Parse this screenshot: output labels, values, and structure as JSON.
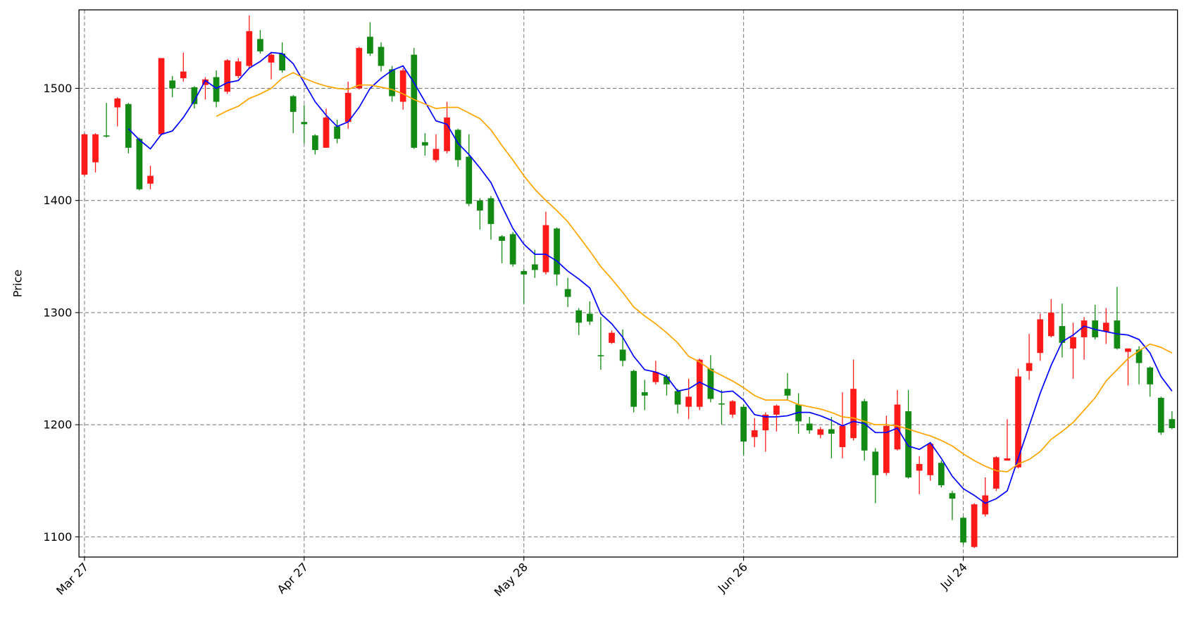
{
  "chart_data": {
    "type": "candlestick",
    "y_label": "Price",
    "up_color": "#ff1a1a",
    "down_color": "#138a13",
    "grid": true,
    "xlim": [
      -0.5,
      99.5
    ],
    "ylim": [
      1082,
      1570
    ],
    "yticks": [
      1100,
      1200,
      1300,
      1400,
      1500
    ],
    "xticks": [
      {
        "value": 0,
        "label": "Mar 27"
      },
      {
        "value": 20,
        "label": "Apr 27"
      },
      {
        "value": 40,
        "label": "May 28"
      },
      {
        "value": 60,
        "label": "Jun 26"
      },
      {
        "value": 80,
        "label": "Jul 24"
      }
    ],
    "open": [
      1423,
      1434,
      1458,
      1483,
      1486,
      1455,
      1415,
      1459,
      1507,
      1509,
      1501,
      1503,
      1510,
      1497,
      1511,
      1520,
      1544,
      1523,
      1531,
      1493,
      1470,
      1458,
      1447,
      1466,
      1470,
      1500,
      1546,
      1537,
      1517,
      1488,
      1530,
      1452,
      1436,
      1444,
      1463,
      1439,
      1400,
      1402,
      1368,
      1370,
      1337,
      1343,
      1336,
      1375,
      1321,
      1302,
      1299,
      1262,
      1273,
      1267,
      1248,
      1229,
      1238,
      1243,
      1230,
      1216,
      1216,
      1250,
      1219,
      1209,
      1216,
      1189,
      1195,
      1209,
      1232,
      1218,
      1201,
      1191,
      1196,
      1180,
      1188,
      1221,
      1176,
      1157,
      1178,
      1212,
      1159,
      1155,
      1166,
      1139,
      1117,
      1091,
      1120,
      1143,
      1168,
      1162,
      1248,
      1264,
      1279,
      1288,
      1268,
      1278,
      1293,
      1283,
      1293,
      1265,
      1267,
      1251,
      1224,
      1205
    ],
    "high": [
      1460,
      1460,
      1487,
      1492,
      1487,
      1456,
      1431,
      1527,
      1511,
      1532,
      1502,
      1510,
      1516,
      1526,
      1527,
      1565,
      1552,
      1532,
      1541,
      1494,
      1485,
      1459,
      1482,
      1472,
      1506,
      1537,
      1559,
      1541,
      1520,
      1518,
      1536,
      1460,
      1459,
      1488,
      1464,
      1459,
      1402,
      1404,
      1369,
      1372,
      1339,
      1356,
      1390,
      1376,
      1331,
      1304,
      1310,
      1296,
      1284,
      1285,
      1249,
      1240,
      1257,
      1245,
      1232,
      1241,
      1259,
      1262,
      1231,
      1222,
      1218,
      1206,
      1211,
      1218,
      1246,
      1228,
      1207,
      1198,
      1207,
      1229,
      1258,
      1223,
      1179,
      1208,
      1231,
      1231,
      1172,
      1184,
      1168,
      1141,
      1118,
      1130,
      1153,
      1172,
      1205,
      1250,
      1281,
      1299,
      1312,
      1308,
      1291,
      1296,
      1307,
      1304,
      1323,
      1268,
      1270,
      1252,
      1225,
      1212
    ],
    "low": [
      1422,
      1425,
      1456,
      1466,
      1442,
      1409,
      1410,
      1458,
      1492,
      1506,
      1482,
      1490,
      1483,
      1495,
      1509,
      1518,
      1531,
      1508,
      1514,
      1460,
      1451,
      1441,
      1447,
      1451,
      1464,
      1499,
      1529,
      1515,
      1488,
      1481,
      1446,
      1440,
      1434,
      1442,
      1430,
      1395,
      1374,
      1365,
      1344,
      1341,
      1308,
      1331,
      1334,
      1324,
      1305,
      1280,
      1289,
      1249,
      1272,
      1252,
      1211,
      1213,
      1236,
      1226,
      1210,
      1205,
      1213,
      1220,
      1200,
      1206,
      1173,
      1180,
      1176,
      1194,
      1222,
      1192,
      1192,
      1188,
      1170,
      1170,
      1186,
      1168,
      1130,
      1155,
      1177,
      1152,
      1138,
      1150,
      1144,
      1115,
      1093,
      1090,
      1118,
      1141,
      1168,
      1161,
      1240,
      1257,
      1278,
      1260,
      1241,
      1258,
      1276,
      1272,
      1267,
      1235,
      1236,
      1225,
      1191,
      1196
    ],
    "close": [
      1459,
      1459,
      1457,
      1491,
      1447,
      1410,
      1422,
      1527,
      1500,
      1515,
      1486,
      1508,
      1488,
      1525,
      1524,
      1551,
      1533,
      1530,
      1516,
      1479,
      1468,
      1445,
      1474,
      1455,
      1496,
      1536,
      1531,
      1520,
      1493,
      1516,
      1447,
      1449,
      1446,
      1474,
      1436,
      1397,
      1391,
      1379,
      1364,
      1343,
      1334,
      1338,
      1378,
      1334,
      1314,
      1291,
      1292,
      1261,
      1282,
      1257,
      1216,
      1226,
      1247,
      1236,
      1218,
      1225,
      1258,
      1223,
      1218,
      1221,
      1185,
      1195,
      1209,
      1217,
      1226,
      1203,
      1195,
      1196,
      1192,
      1199,
      1232,
      1177,
      1155,
      1199,
      1218,
      1153,
      1165,
      1183,
      1146,
      1134,
      1095,
      1129,
      1137,
      1171,
      1170,
      1243,
      1255,
      1294,
      1300,
      1273,
      1278,
      1293,
      1278,
      1291,
      1268,
      1268,
      1255,
      1236,
      1193,
      1197
    ],
    "lines": [
      {
        "color": "#0000ff",
        "values": [
          null,
          null,
          null,
          null,
          1464,
          1454,
          1446,
          1459,
          1462,
          1474,
          1489,
          1507,
          1500,
          1505,
          1507,
          1518,
          1524,
          1532,
          1531,
          1522,
          1505,
          1488,
          1476,
          1466,
          1470,
          1483,
          1500,
          1509,
          1516,
          1520,
          1505,
          1488,
          1471,
          1468,
          1451,
          1441,
          1429,
          1416,
          1395,
          1375,
          1361,
          1352,
          1352,
          1346,
          1337,
          1330,
          1322,
          1299,
          1290,
          1278,
          1261,
          1249,
          1247,
          1243,
          1230,
          1232,
          1238,
          1233,
          1229,
          1230,
          1222,
          1209,
          1207,
          1207,
          1208,
          1211,
          1211,
          1208,
          1204,
          1199,
          1203,
          1201,
          1193,
          1193,
          1197,
          1181,
          1178,
          1184,
          1170,
          1154,
          1143,
          1137,
          1130,
          1134,
          1141,
          1170,
          1199,
          1228,
          1253,
          1274,
          1280,
          1288,
          1285,
          1283,
          1281,
          1280,
          1276,
          1264,
          1243,
          1230
        ]
      },
      {
        "color": "#ffa500",
        "values": [
          null,
          null,
          null,
          null,
          null,
          null,
          null,
          null,
          null,
          null,
          null,
          null,
          1475,
          1480,
          1484,
          1491,
          1495,
          1500,
          1509,
          1514,
          1509,
          1505,
          1502,
          1500,
          1499,
          1503,
          1503,
          1501,
          1499,
          1495,
          1490,
          1486,
          1482,
          1483,
          1483,
          1478,
          1473,
          1463,
          1449,
          1436,
          1422,
          1410,
          1400,
          1391,
          1381,
          1368,
          1355,
          1341,
          1330,
          1318,
          1305,
          1297,
          1290,
          1282,
          1273,
          1261,
          1256,
          1249,
          1244,
          1239,
          1233,
          1226,
          1222,
          1222,
          1222,
          1218,
          1216,
          1214,
          1211,
          1207,
          1206,
          1203,
          1200,
          1200,
          1199,
          1196,
          1193,
          1190,
          1186,
          1181,
          1174,
          1168,
          1163,
          1159,
          1158,
          1165,
          1169,
          1176,
          1187,
          1194,
          1202,
          1213,
          1224,
          1239,
          1249,
          1259,
          1266,
          1272,
          1269,
          1264
        ]
      }
    ]
  }
}
